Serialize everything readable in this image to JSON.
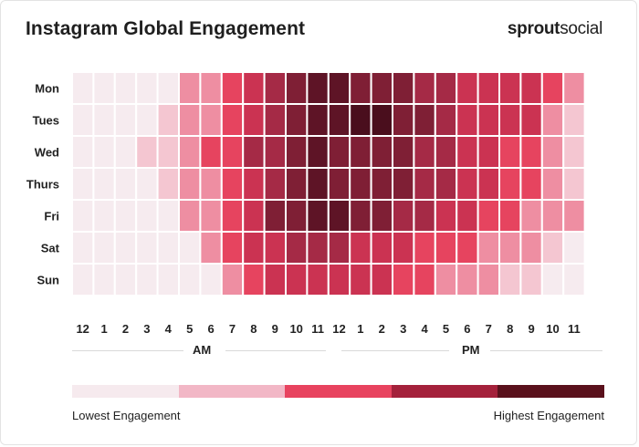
{
  "title": "Instagram Global Engagement",
  "brand": {
    "part1": "sprout",
    "part2": "social"
  },
  "colors": [
    "#f6eaee",
    "#f2b7c6",
    "#e8435f",
    "#a4213b",
    "#5a111c"
  ],
  "chart_data": {
    "type": "heatmap",
    "title": "Instagram Global Engagement",
    "rows": [
      "Mon",
      "Tues",
      "Wed",
      "Thurs",
      "Fri",
      "Sat",
      "Sun"
    ],
    "columns": [
      "12",
      "1",
      "2",
      "3",
      "4",
      "5",
      "6",
      "7",
      "8",
      "9",
      "10",
      "11",
      "12",
      "1",
      "2",
      "3",
      "4",
      "5",
      "6",
      "7",
      "8",
      "9",
      "10",
      "11"
    ],
    "column_groups": [
      {
        "label": "AM"
      },
      {
        "label": "PM"
      }
    ],
    "scale": {
      "min": 0,
      "max": 8,
      "low_label": "Lowest Engagement",
      "high_label": "Highest Engagement"
    },
    "values": [
      [
        0,
        0,
        0,
        0,
        0,
        2,
        2,
        3,
        4,
        5,
        6,
        7,
        7,
        6,
        6,
        6,
        5,
        5,
        4,
        4,
        4,
        4,
        3,
        2
      ],
      [
        0,
        0,
        0,
        0,
        1,
        2,
        2,
        3,
        4,
        5,
        6,
        7,
        7,
        8,
        8,
        6,
        6,
        5,
        4,
        4,
        4,
        4,
        2,
        1
      ],
      [
        0,
        0,
        0,
        1,
        1,
        2,
        3,
        3,
        5,
        5,
        6,
        7,
        6,
        6,
        6,
        6,
        5,
        5,
        4,
        4,
        3,
        3,
        2,
        1
      ],
      [
        0,
        0,
        0,
        0,
        1,
        2,
        2,
        3,
        4,
        5,
        6,
        7,
        6,
        6,
        6,
        6,
        5,
        5,
        4,
        4,
        3,
        3,
        2,
        1
      ],
      [
        0,
        0,
        0,
        0,
        0,
        2,
        2,
        3,
        4,
        6,
        6,
        7,
        7,
        6,
        6,
        5,
        5,
        4,
        4,
        3,
        3,
        2,
        2,
        2
      ],
      [
        0,
        0,
        0,
        0,
        0,
        0,
        2,
        3,
        4,
        4,
        5,
        5,
        5,
        4,
        4,
        4,
        3,
        3,
        3,
        2,
        2,
        2,
        1,
        0
      ],
      [
        0,
        0,
        0,
        0,
        0,
        0,
        0,
        2,
        3,
        4,
        4,
        4,
        4,
        4,
        4,
        3,
        3,
        2,
        2,
        2,
        1,
        1,
        0,
        0
      ]
    ]
  }
}
